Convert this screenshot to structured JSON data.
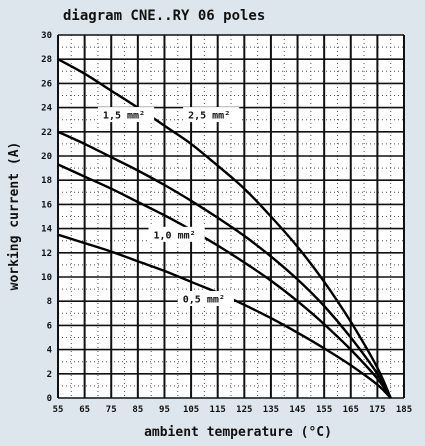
{
  "chart_data": {
    "type": "line",
    "title": "diagram CNE..RY 06 poles",
    "xlabel": "ambient temperature (°C)",
    "ylabel": "working current (A)",
    "xlim": [
      55,
      185
    ],
    "ylim": [
      0,
      30
    ],
    "x_ticks": [
      55,
      65,
      75,
      85,
      95,
      105,
      115,
      125,
      135,
      145,
      155,
      165,
      175,
      185
    ],
    "y_ticks": [
      0,
      2,
      4,
      6,
      8,
      10,
      12,
      14,
      16,
      18,
      20,
      22,
      24,
      26,
      28,
      30
    ],
    "x_tick_labels": [
      "55",
      "65",
      "75",
      "85",
      "95",
      "105",
      "115",
      "125",
      "135",
      "145",
      "155",
      "165",
      "175",
      "185"
    ],
    "y_tick_labels": [
      "0",
      "2",
      "4",
      "6",
      "8",
      "10",
      "12",
      "14",
      "16",
      "18",
      "20",
      "22",
      "24",
      "26",
      "28",
      "30"
    ],
    "grid": true,
    "legend": "inline labels on curves",
    "series": [
      {
        "name": "2,5 mm²",
        "x": [
          55,
          65,
          75,
          85,
          95,
          105,
          115,
          125,
          135,
          145,
          155,
          165,
          175,
          180
        ],
        "y": [
          28.0,
          26.8,
          25.4,
          24.0,
          22.5,
          21.0,
          19.2,
          17.3,
          15.0,
          12.5,
          9.6,
          6.3,
          2.5,
          0
        ]
      },
      {
        "name": "1,5 mm²",
        "x": [
          55,
          65,
          75,
          85,
          95,
          105,
          115,
          125,
          135,
          145,
          155,
          165,
          175,
          180
        ],
        "y": [
          22.0,
          21.0,
          19.9,
          18.8,
          17.6,
          16.3,
          14.9,
          13.4,
          11.7,
          9.8,
          7.6,
          5.0,
          2.0,
          0
        ]
      },
      {
        "name": "1,0 mm²",
        "x": [
          55,
          65,
          75,
          85,
          95,
          105,
          115,
          125,
          135,
          145,
          155,
          165,
          175,
          180
        ],
        "y": [
          19.3,
          18.3,
          17.3,
          16.2,
          15.1,
          13.9,
          12.6,
          11.2,
          9.7,
          8.0,
          6.1,
          4.0,
          1.6,
          0
        ]
      },
      {
        "name": "0,5 mm²",
        "x": [
          55,
          65,
          75,
          85,
          95,
          105,
          115,
          125,
          135,
          145,
          155,
          165,
          175,
          180
        ],
        "y": [
          13.5,
          12.8,
          12.1,
          11.3,
          10.5,
          9.6,
          8.7,
          7.7,
          6.6,
          5.4,
          4.1,
          2.7,
          1.1,
          0
        ]
      }
    ],
    "series_labels": [
      {
        "text": "2,5 mm²",
        "at_x": 102,
        "at_y": 23.3
      },
      {
        "text": "1,5 mm²",
        "at_x": 70,
        "at_y": 23.3
      },
      {
        "text": "1,0 mm²",
        "at_x": 89,
        "at_y": 13.4
      },
      {
        "text": "0,5 mm²",
        "at_x": 100,
        "at_y": 8.1
      }
    ]
  }
}
